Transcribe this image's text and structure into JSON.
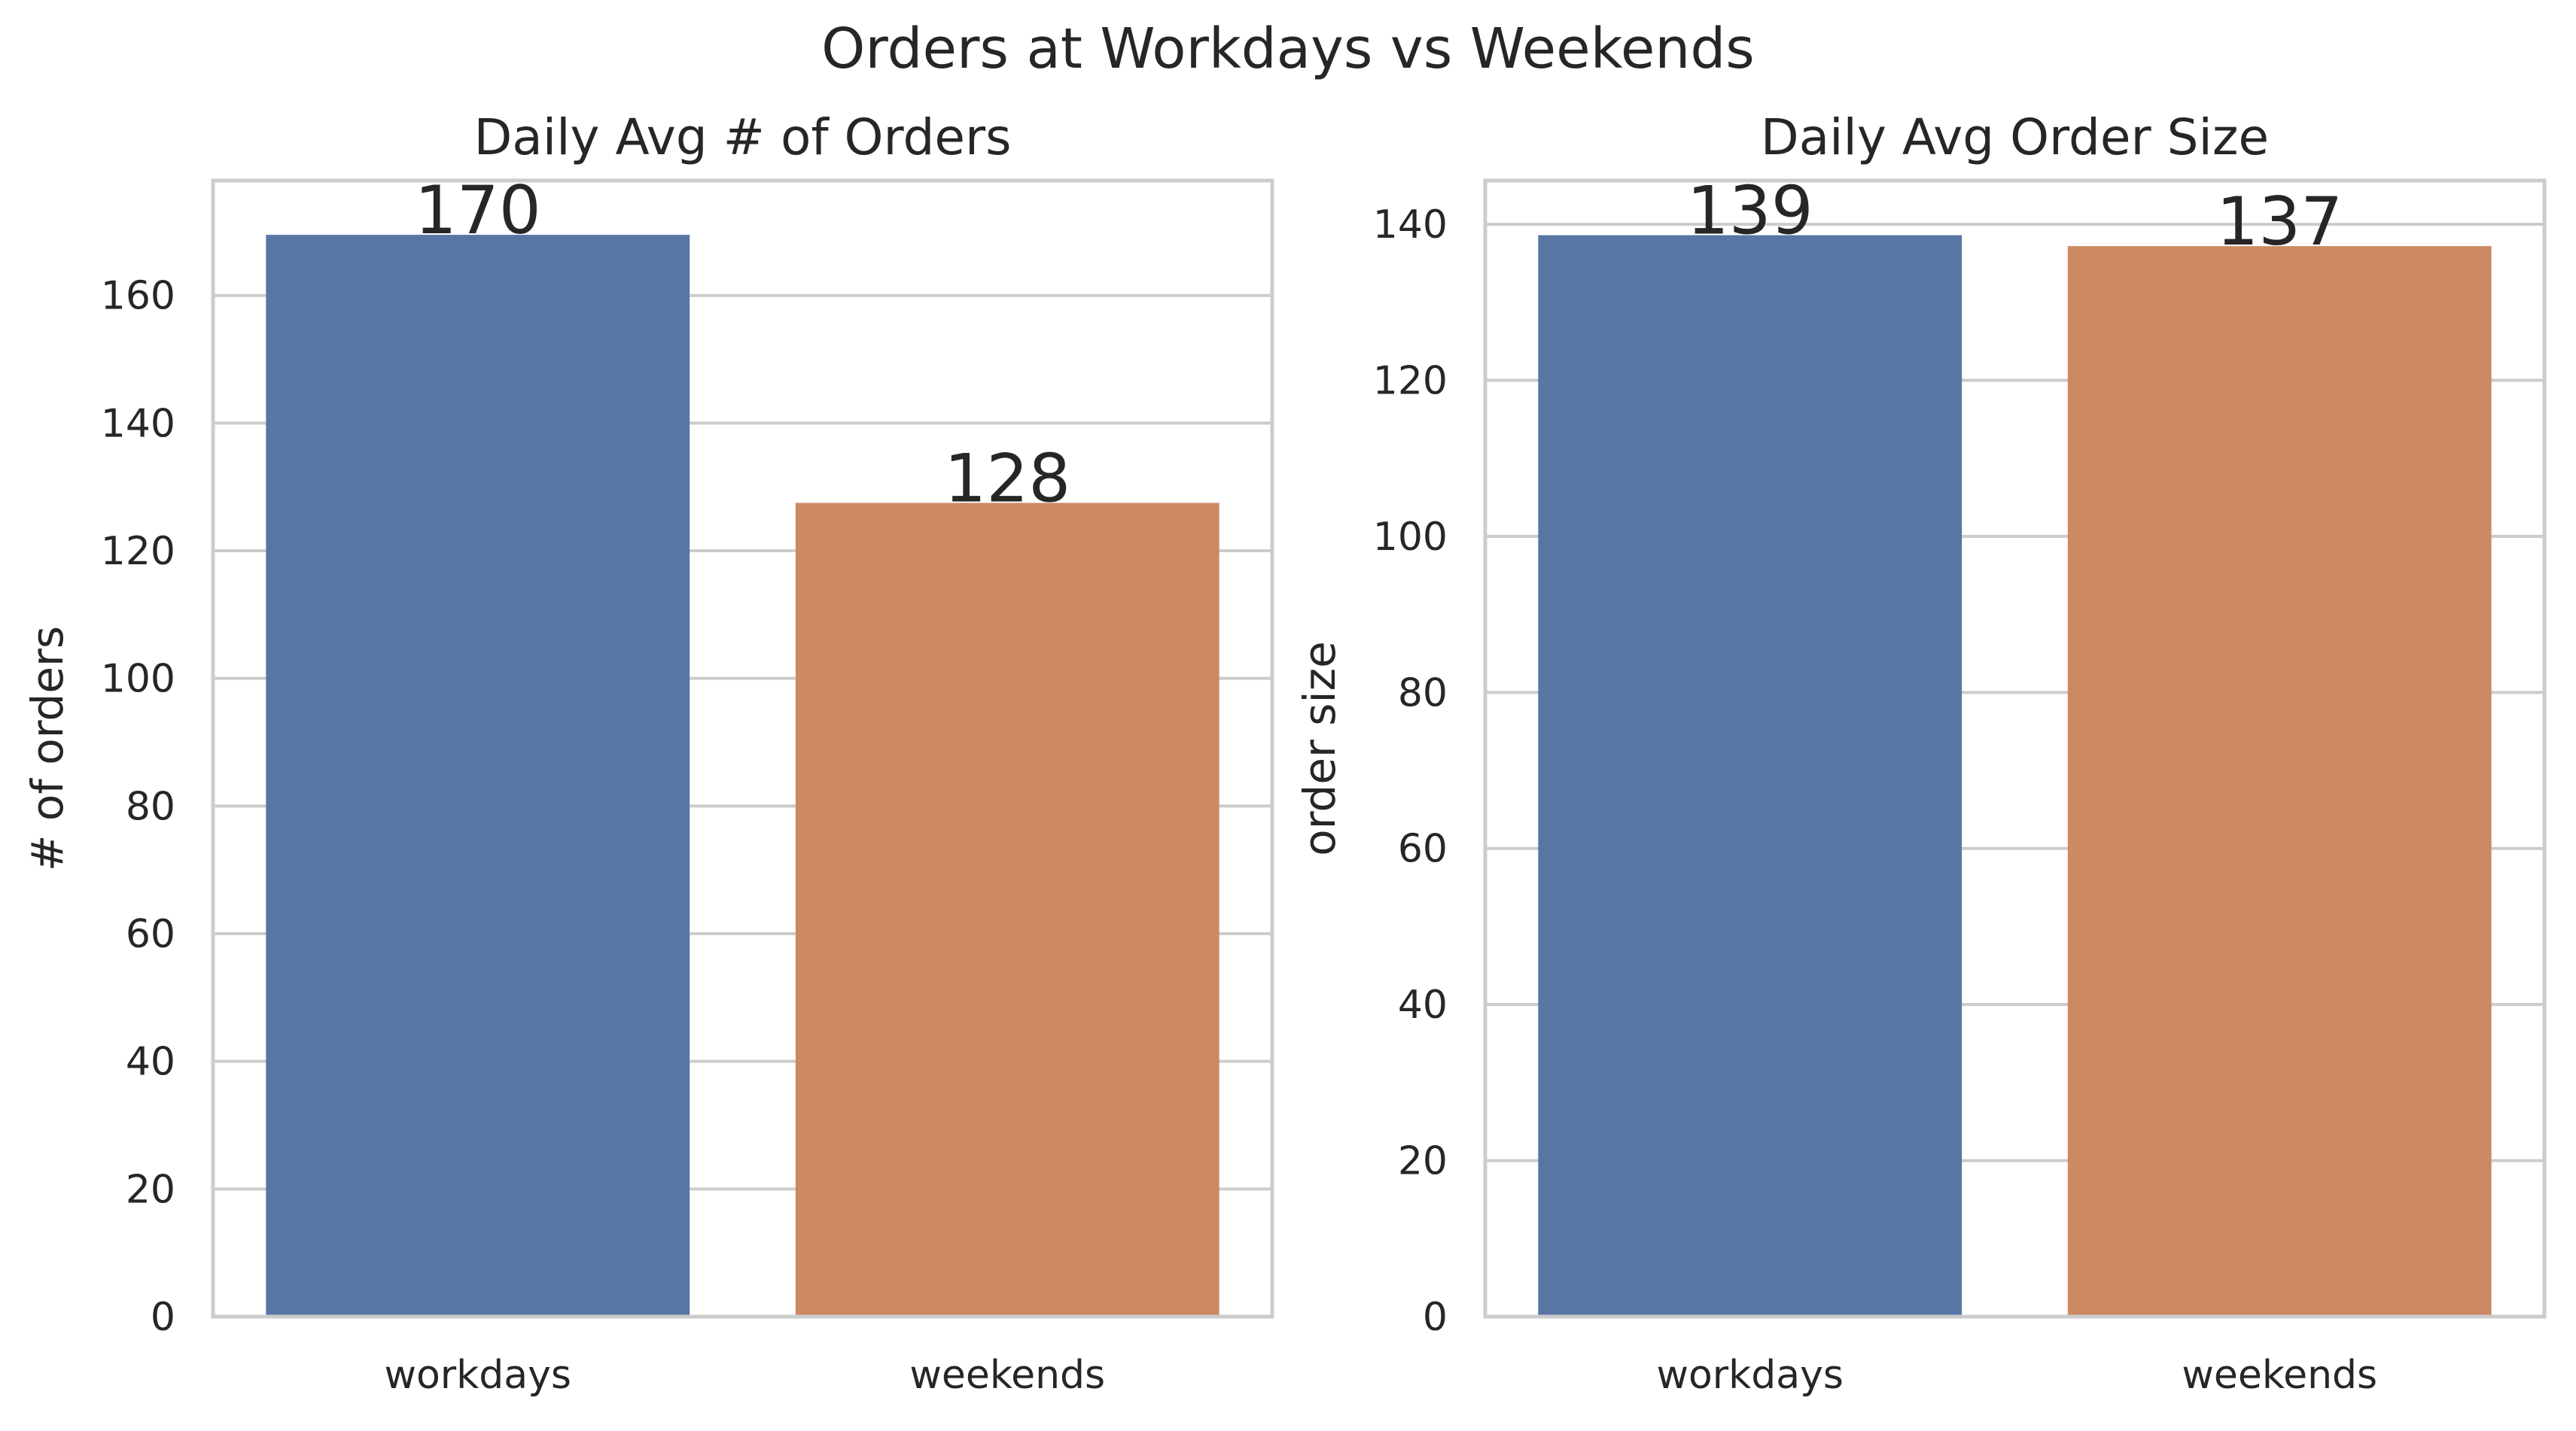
{
  "figure": {
    "title": "Orders at Workdays vs Weekends"
  },
  "chart_data": [
    {
      "type": "bar",
      "title": "Daily Avg # of Orders",
      "xlabel": "",
      "ylabel": "# of orders",
      "categories": [
        "workdays",
        "weekends"
      ],
      "values": [
        169.5,
        127.5
      ],
      "value_labels": [
        "170",
        "128"
      ],
      "colors": [
        "#5975a4",
        "#cc8963"
      ],
      "ylim": [
        0,
        178
      ],
      "yticks": [
        0,
        20,
        40,
        60,
        80,
        100,
        120,
        140,
        160
      ],
      "grid": "y"
    },
    {
      "type": "bar",
      "title": "Daily Avg Order Size",
      "xlabel": "",
      "ylabel": "order size",
      "categories": [
        "workdays",
        "weekends"
      ],
      "values": [
        138.6,
        137.2
      ],
      "value_labels": [
        "139",
        "137"
      ],
      "colors": [
        "#5975a4",
        "#cc8963"
      ],
      "ylim": [
        0,
        145.6
      ],
      "yticks": [
        0,
        20,
        40,
        60,
        80,
        100,
        120,
        140
      ],
      "grid": "y"
    }
  ]
}
